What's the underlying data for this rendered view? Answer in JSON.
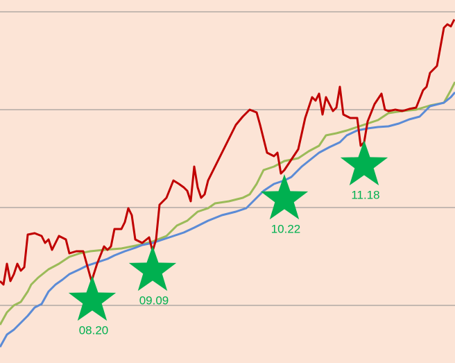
{
  "chart_data": {
    "type": "line",
    "xlim": [
      0,
      656
    ],
    "ylim": [
      0,
      523
    ],
    "yticks": [
      83,
      224,
      365,
      506
    ],
    "grid": true,
    "background": "#fce4d6",
    "series": [
      {
        "color": "#9bbb59",
        "x": [
          0,
          10,
          20,
          30,
          40,
          45,
          55,
          70,
          85,
          100,
          115,
          130,
          150,
          175,
          190,
          205,
          220,
          240,
          255,
          270,
          285,
          300,
          310,
          330,
          350,
          360,
          370,
          380,
          395,
          410,
          430,
          445,
          460,
          470,
          485,
          500,
          515,
          530,
          545,
          560,
          580,
          600,
          620,
          640,
          650,
          656
        ],
        "values": [
          55,
          73,
          83,
          88,
          103,
          113,
          123,
          135,
          143,
          153,
          158,
          161,
          163,
          165,
          168,
          171,
          175,
          183,
          198,
          205,
          218,
          223,
          230,
          233,
          238,
          243,
          258,
          278,
          283,
          291,
          295,
          305,
          313,
          328,
          331,
          335,
          340,
          345,
          350,
          360,
          363,
          365,
          371,
          375,
          393,
          405
        ]
      },
      {
        "color": "#5b8bd6",
        "x": [
          0,
          10,
          20,
          30,
          40,
          50,
          60,
          70,
          80,
          90,
          100,
          115,
          125,
          140,
          155,
          165,
          180,
          195,
          205,
          220,
          235,
          250,
          265,
          280,
          300,
          320,
          340,
          355,
          365,
          380,
          395,
          410,
          420,
          435,
          445,
          460,
          475,
          490,
          500,
          515,
          530,
          545,
          560,
          575,
          590,
          605,
          620,
          640,
          650,
          656
        ],
        "values": [
          23,
          41,
          48,
          58,
          68,
          80,
          85,
          103,
          113,
          120,
          128,
          135,
          140,
          145,
          150,
          155,
          161,
          166,
          170,
          173,
          178,
          183,
          188,
          195,
          205,
          213,
          218,
          223,
          233,
          248,
          258,
          263,
          268,
          283,
          291,
          303,
          311,
          318,
          328,
          335,
          338,
          340,
          341,
          345,
          351,
          355,
          370,
          375,
          383,
          390
        ]
      },
      {
        "color": "#c00000",
        "x": [
          0,
          5,
          10,
          15,
          20,
          25,
          30,
          35,
          40,
          50,
          60,
          65,
          70,
          75,
          85,
          95,
          100,
          110,
          120,
          125,
          132,
          140,
          150,
          155,
          160,
          165,
          175,
          180,
          185,
          190,
          195,
          205,
          215,
          220,
          225,
          230,
          240,
          250,
          258,
          265,
          270,
          275,
          280,
          285,
          290,
          295,
          300,
          310,
          320,
          330,
          340,
          350,
          360,
          370,
          375,
          385,
          395,
          400,
          405,
          410,
          420,
          430,
          440,
          450,
          455,
          460,
          465,
          470,
          480,
          485,
          490,
          495,
          505,
          515,
          520,
          525,
          530,
          540,
          550,
          555,
          560,
          570,
          580,
          590,
          600,
          610,
          615,
          620,
          630,
          640,
          645,
          650,
          655
        ],
        "values": [
          118,
          113,
          143,
          118,
          128,
          143,
          133,
          138,
          185,
          187,
          183,
          173,
          178,
          163,
          183,
          178,
          158,
          161,
          161,
          143,
          118,
          143,
          168,
          163,
          168,
          193,
          193,
          203,
          223,
          213,
          178,
          173,
          181,
          161,
          178,
          228,
          238,
          263,
          258,
          253,
          248,
          233,
          283,
          253,
          238,
          243,
          263,
          283,
          303,
          323,
          343,
          355,
          365,
          361,
          343,
          303,
          298,
          303,
          273,
          278,
          293,
          308,
          353,
          383,
          378,
          388,
          358,
          383,
          363,
          368,
          398,
          358,
          353,
          353,
          313,
          318,
          348,
          373,
          388,
          365,
          363,
          365,
          363,
          366,
          368,
          393,
          398,
          418,
          428,
          483,
          488,
          485,
          495
        ]
      }
    ],
    "annotations": [
      {
        "label": "08.20",
        "x": 133,
        "y": 90,
        "color": "#00b050"
      },
      {
        "label": "09.09",
        "x": 220,
        "y": 133,
        "color": "#00b050"
      },
      {
        "label": "10.22",
        "x": 410,
        "y": 236,
        "color": "#00b050"
      },
      {
        "label": "11.18",
        "x": 525,
        "y": 285,
        "color": "#00b050"
      }
    ]
  }
}
